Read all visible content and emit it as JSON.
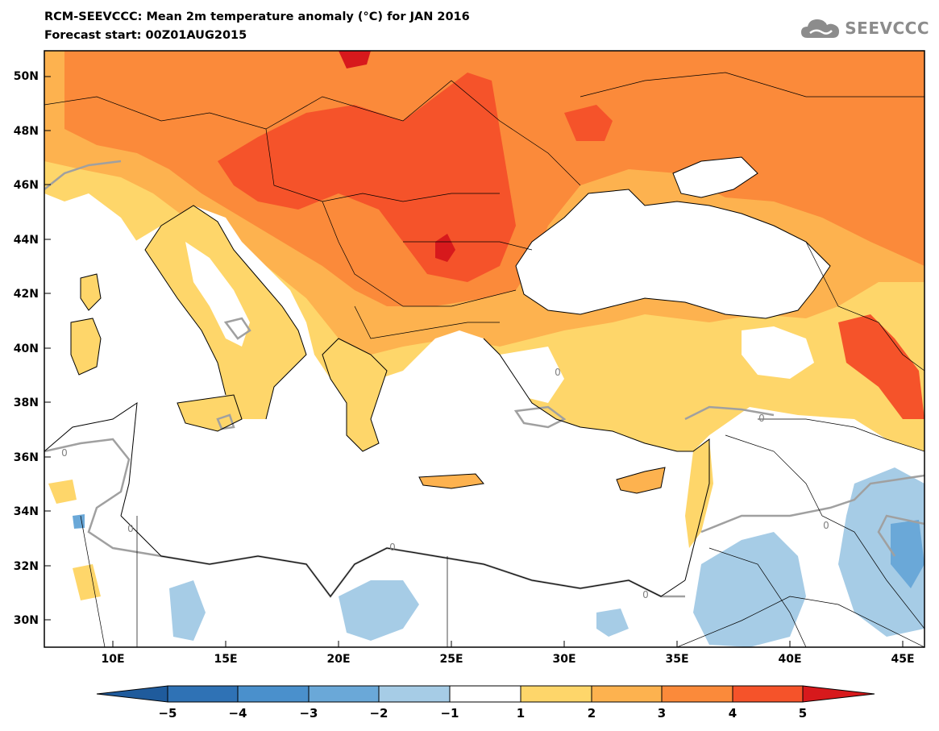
{
  "title": "RCM-SEEVCCC: Mean 2m temperature anomaly (°C) for JAN 2016",
  "subtitle": "Forecast start: 00Z01AUG2015",
  "logo_text": "SEEVCCC",
  "lat_labels": [
    "50N",
    "48N",
    "46N",
    "44N",
    "42N",
    "40N",
    "38N",
    "36N",
    "34N",
    "32N",
    "30N"
  ],
  "lon_labels": [
    "10E",
    "15E",
    "20E",
    "25E",
    "30E",
    "35E",
    "40E",
    "45E"
  ],
  "contour_label": "0",
  "colorbar": {
    "labels": [
      "−5",
      "−4",
      "−3",
      "−2",
      "−1",
      "1",
      "2",
      "3",
      "4",
      "5"
    ],
    "colors": [
      "#1f5b9c",
      "#2f72b5",
      "#4a90cc",
      "#6aa8d8",
      "#a6cce6",
      "#ffffff",
      "#fed66a",
      "#fdb24f",
      "#fb8a3a",
      "#f5532a",
      "#d7191c"
    ]
  },
  "map_colors": {
    "land_light": "#fed66a",
    "land_mid": "#fdb24f",
    "land_warm": "#fb8a3a",
    "land_hot": "#f5532a",
    "land_max": "#d7191c",
    "cool_1": "#a6cce6",
    "cool_2": "#6aa8d8"
  }
}
